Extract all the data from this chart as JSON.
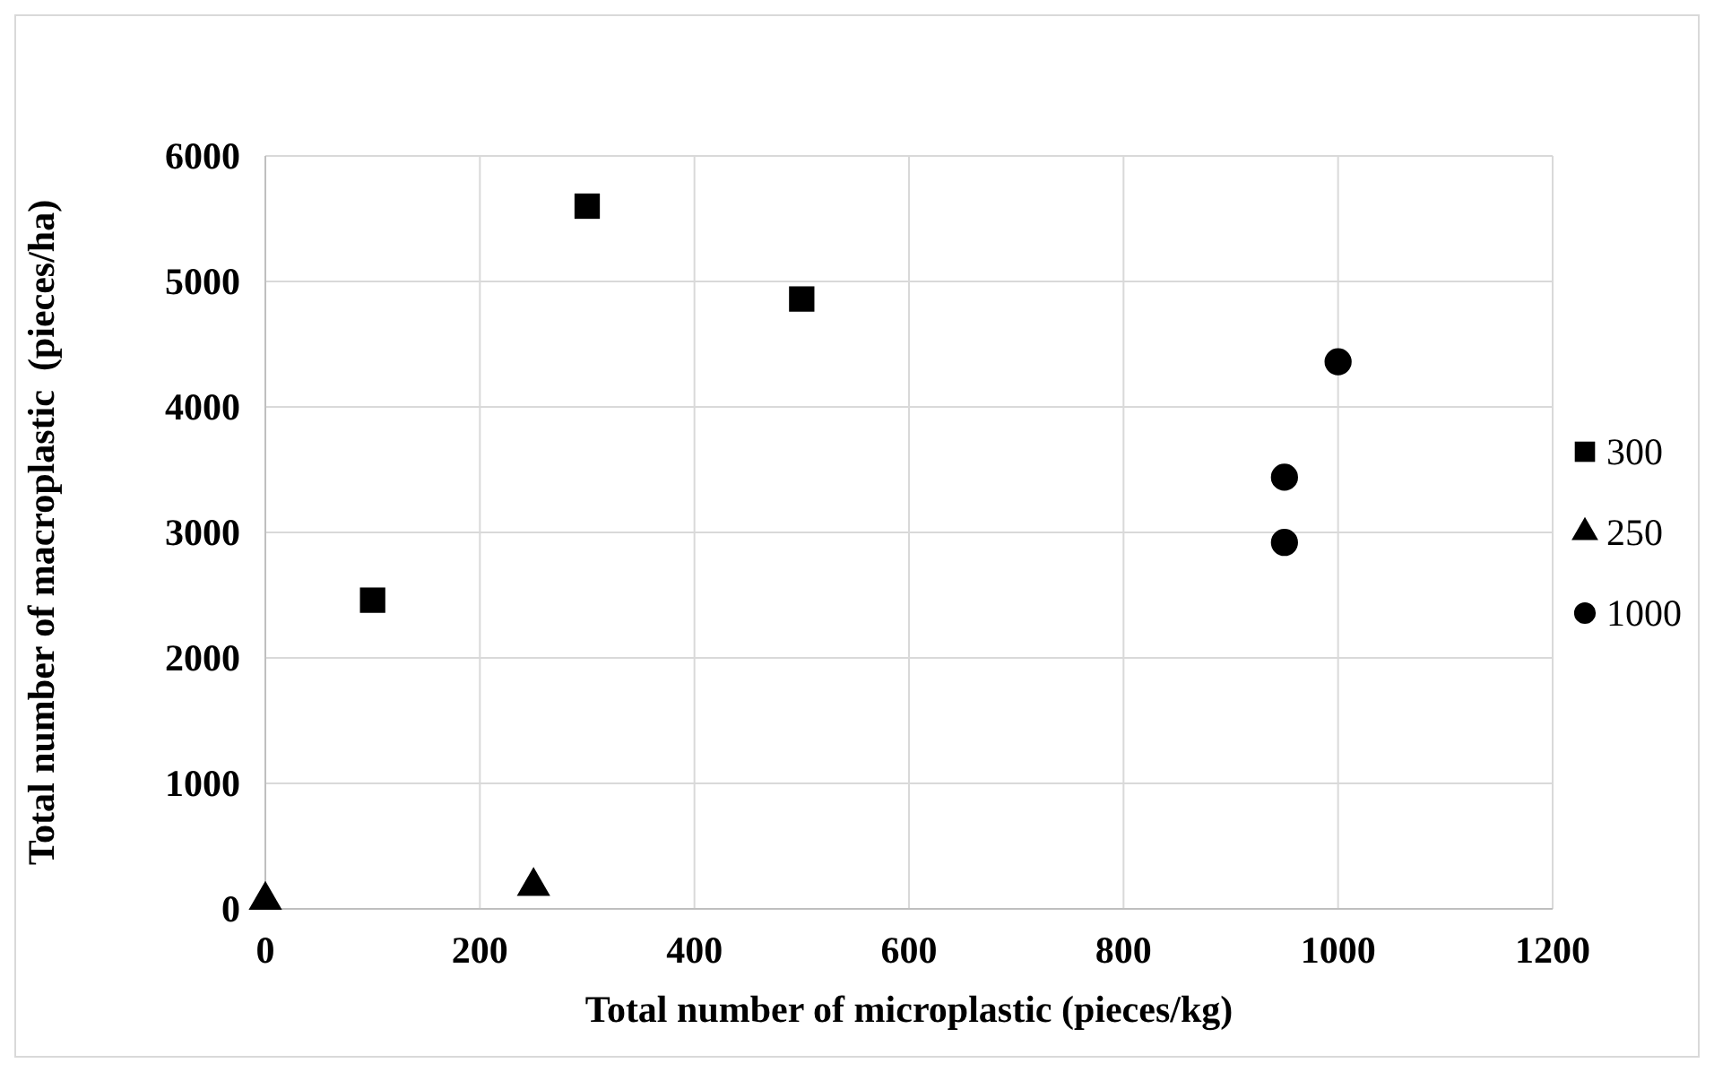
{
  "chart_data": {
    "type": "scatter",
    "xlabel": "Total number of microplastic (pieces/kg)",
    "ylabel": "Total number of macroplastic  (pieces/ha)",
    "xlim": [
      0,
      1200
    ],
    "xticks": [
      0,
      200,
      400,
      600,
      800,
      1000,
      1200
    ],
    "ylim": [
      0,
      6000
    ],
    "yticks": [
      0,
      1000,
      2000,
      3000,
      4000,
      5000,
      6000
    ],
    "grid": true,
    "legend": "right",
    "series": [
      {
        "name": "300",
        "color": "#000000",
        "marker": "square",
        "x": [
          100,
          300,
          500
        ],
        "values": [
          2460,
          5600,
          4860
        ]
      },
      {
        "name": "250",
        "color": "#000000",
        "marker": "triangle",
        "x": [
          0,
          250
        ],
        "values": [
          70,
          180
        ]
      },
      {
        "name": "1000",
        "color": "#000000",
        "marker": "circle",
        "x": [
          950,
          950,
          1000
        ],
        "values": [
          3440,
          2920,
          4360
        ]
      }
    ]
  }
}
